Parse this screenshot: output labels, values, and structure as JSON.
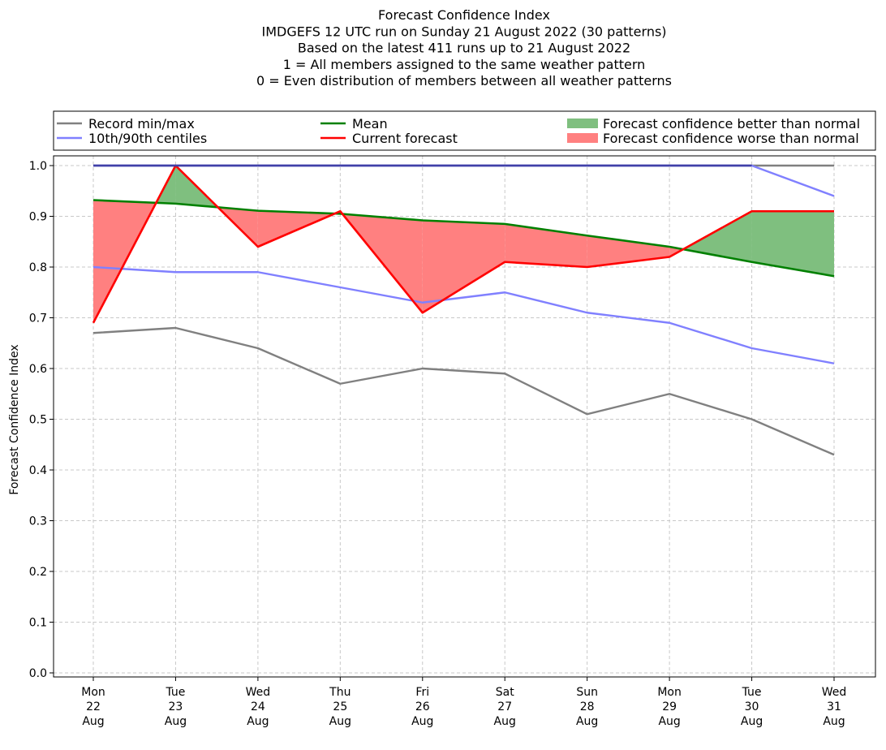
{
  "chart_data": {
    "type": "line",
    "title_lines": [
      "Forecast Confidence Index",
      "IMDGEFS 12 UTC run on Sunday 21 August 2022 (30 patterns)",
      "Based on the latest 411 runs up to 21 August 2022",
      "1 = All members assigned to the same weather pattern",
      "0 = Even distribution of members between all weather patterns"
    ],
    "ylabel": "Forecast Confidence Index",
    "xlabel": "",
    "ylim": [
      0,
      1
    ],
    "yticks": [
      "0.0",
      "0.1",
      "0.2",
      "0.3",
      "0.4",
      "0.5",
      "0.6",
      "0.7",
      "0.8",
      "0.9",
      "1.0"
    ],
    "grid": true,
    "legend_position": "top",
    "categories": [
      [
        "Mon",
        "22",
        "Aug"
      ],
      [
        "Tue",
        "23",
        "Aug"
      ],
      [
        "Wed",
        "24",
        "Aug"
      ],
      [
        "Thu",
        "25",
        "Aug"
      ],
      [
        "Fri",
        "26",
        "Aug"
      ],
      [
        "Sat",
        "27",
        "Aug"
      ],
      [
        "Sun",
        "28",
        "Aug"
      ],
      [
        "Mon",
        "29",
        "Aug"
      ],
      [
        "Tue",
        "30",
        "Aug"
      ],
      [
        "Wed",
        "31",
        "Aug"
      ]
    ],
    "series": [
      {
        "key": "record_min",
        "values": [
          0.67,
          0.68,
          0.64,
          0.57,
          0.6,
          0.59,
          0.51,
          0.55,
          0.5,
          0.43
        ],
        "color": "#808080"
      },
      {
        "key": "record_max",
        "values": [
          1.0,
          1.0,
          1.0,
          1.0,
          1.0,
          1.0,
          1.0,
          1.0,
          1.0,
          1.0
        ],
        "color": "#808080"
      },
      {
        "key": "p10",
        "values": [
          0.8,
          0.79,
          0.79,
          0.76,
          0.73,
          0.75,
          0.71,
          0.69,
          0.64,
          0.61
        ],
        "color": "#8080ff"
      },
      {
        "key": "p90",
        "values": [
          1.0,
          1.0,
          1.0,
          1.0,
          1.0,
          1.0,
          1.0,
          1.0,
          1.0,
          0.94
        ],
        "color": "#8080ff"
      },
      {
        "key": "mean",
        "values": [
          0.932,
          0.925,
          0.911,
          0.905,
          0.892,
          0.885,
          0.862,
          0.84,
          0.81,
          0.782
        ],
        "color": "#008000"
      },
      {
        "key": "current",
        "values": [
          0.69,
          1.0,
          0.84,
          0.91,
          0.71,
          0.81,
          0.8,
          0.82,
          0.91,
          0.91
        ],
        "color": "#ff0000"
      }
    ],
    "fill_better_color": "#7fbf7f",
    "fill_worse_color": "#ff8080",
    "legend": [
      {
        "label": "Record min/max",
        "type": "line",
        "color": "#808080"
      },
      {
        "label": "10th/90th centiles",
        "type": "line",
        "color": "#8080ff"
      },
      {
        "label": "Mean",
        "type": "line",
        "color": "#008000"
      },
      {
        "label": "Current forecast",
        "type": "line",
        "color": "#ff0000"
      },
      {
        "label": "Forecast confidence better than normal",
        "type": "patch",
        "color": "#7fbf7f"
      },
      {
        "label": "Forecast confidence worse than normal",
        "type": "patch",
        "color": "#ff8080"
      }
    ]
  }
}
